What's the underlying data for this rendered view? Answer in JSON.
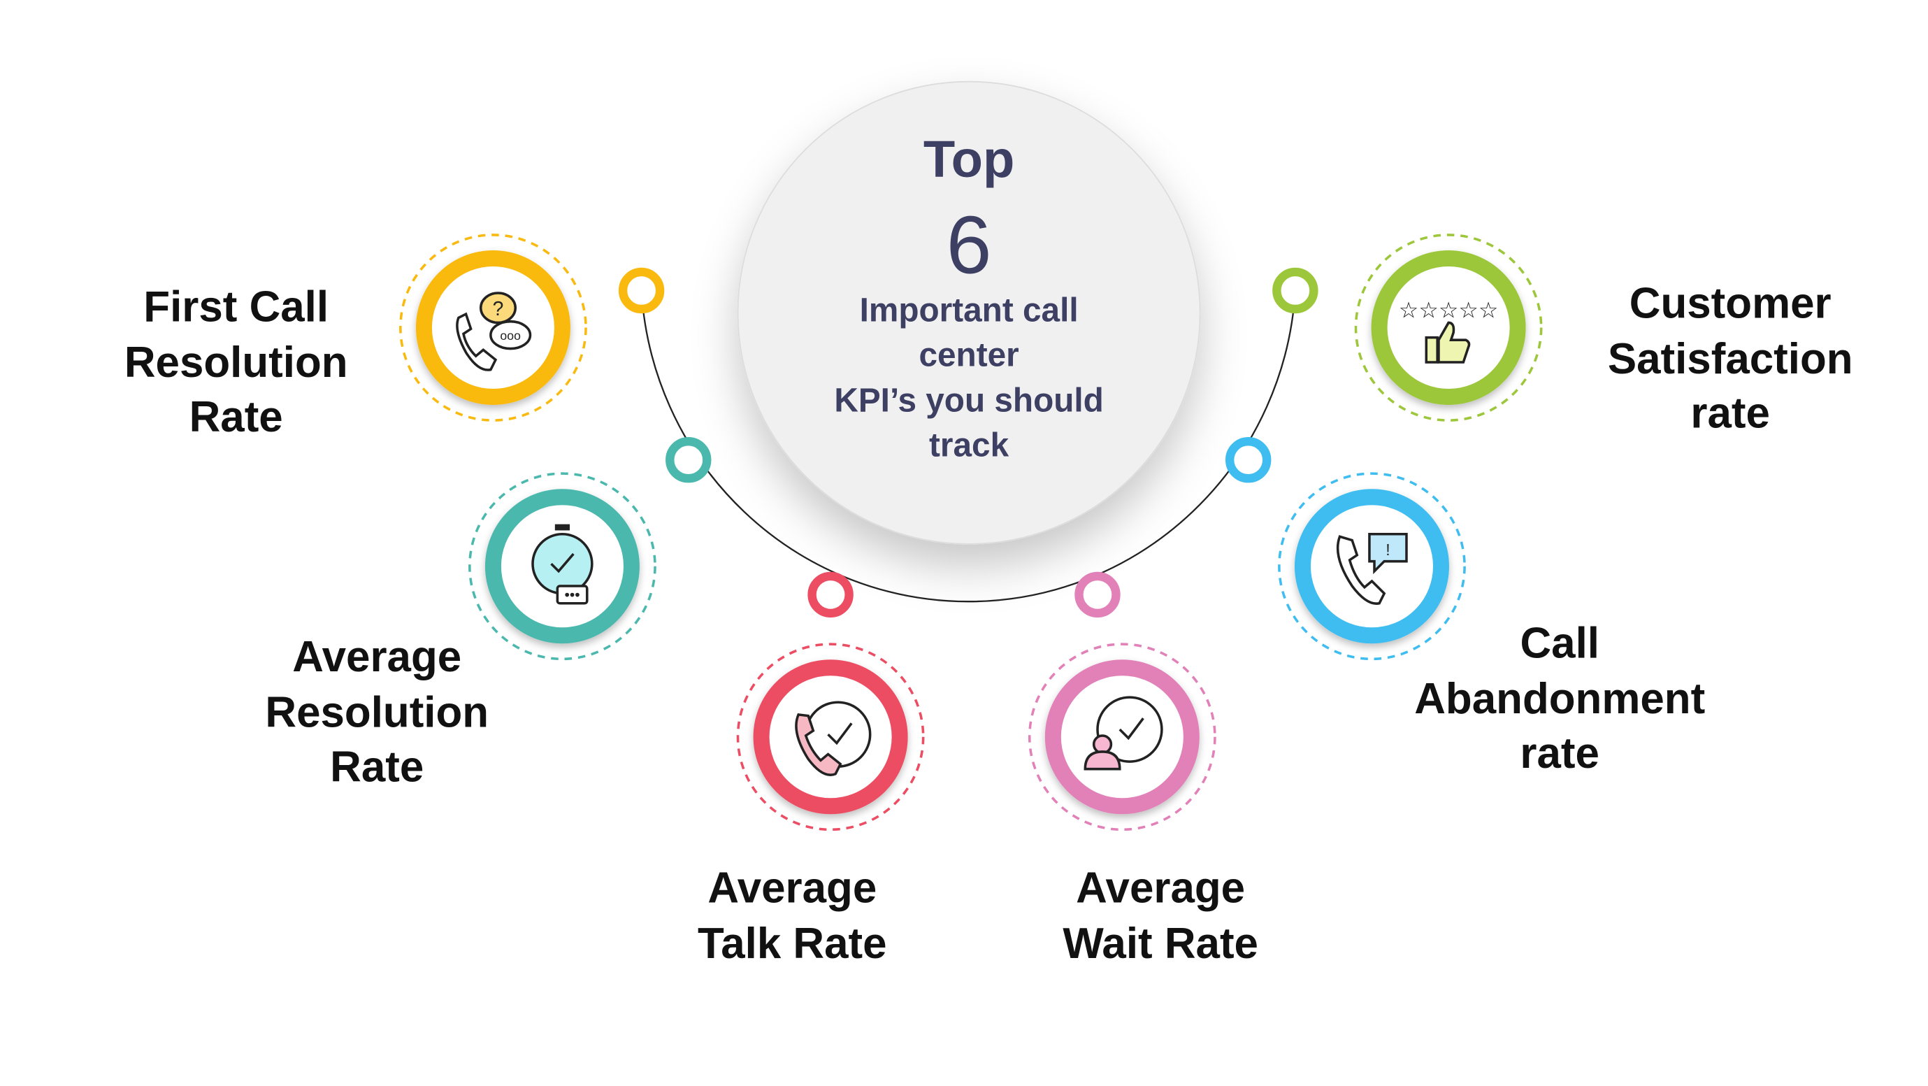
{
  "center": {
    "title": "Top",
    "number": "6",
    "lines": [
      "Important call",
      "center",
      "KPI’s you should",
      "track"
    ]
  },
  "kpis": [
    {
      "label": [
        "First Call",
        "Resolution",
        "Rate"
      ],
      "color": "#f9b90f",
      "icon": "phone-chat-question-icon"
    },
    {
      "label": [
        "Average",
        "Resolution",
        "Rate"
      ],
      "color": "#4bb8ad",
      "icon": "stopwatch-icon"
    },
    {
      "label": [
        "Average",
        "Talk Rate"
      ],
      "color": "#ec4d63",
      "icon": "phone-clock-icon"
    },
    {
      "label": [
        "Average",
        "Wait Rate"
      ],
      "color": "#e280b8",
      "icon": "person-clock-icon"
    },
    {
      "label": [
        "Call",
        "Abandonment",
        "rate"
      ],
      "color": "#3fbdf0",
      "icon": "phone-alert-icon"
    },
    {
      "label": [
        "Customer",
        "Satisfaction",
        "rate"
      ],
      "color": "#9dc73a",
      "icon": "thumbs-up-stars-icon"
    }
  ]
}
